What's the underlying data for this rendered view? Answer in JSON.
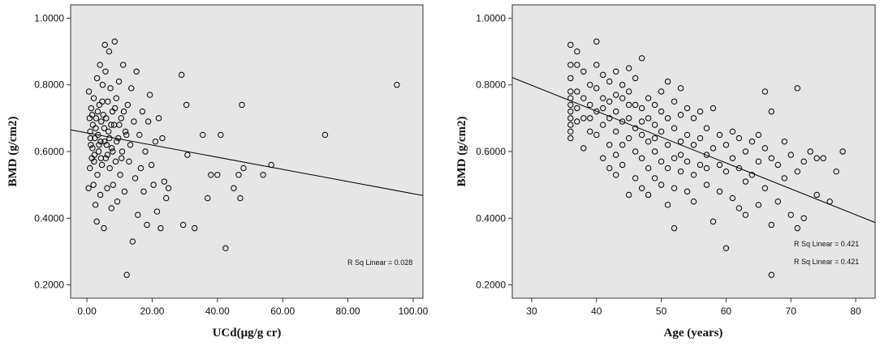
{
  "chart_data": [
    {
      "type": "scatter",
      "xlabel": "UCd(μg/g cr)",
      "ylabel": "BMD (g/cm2)",
      "xlim": [
        -5,
        103
      ],
      "ylim": [
        0.16,
        1.04
      ],
      "xticks": [
        0,
        20,
        40,
        60,
        80,
        100
      ],
      "xtick_labels": [
        "0.00",
        "20.00",
        "40.00",
        "60.00",
        "80.00",
        "100.00"
      ],
      "yticks": [
        0.2,
        0.4,
        0.6,
        0.8,
        1.0
      ],
      "ytick_labels": [
        "0.2000",
        "0.4000",
        "0.6000",
        "0.8000",
        "1.0000"
      ],
      "background": "#e6e6e6",
      "fit_line": {
        "x": [
          -5,
          103
        ],
        "y": [
          0.665,
          0.468
        ]
      },
      "annotations": [
        "R Sq Linear = 0.028"
      ],
      "points": [
        [
          0.5,
          0.49
        ],
        [
          0.8,
          0.7
        ],
        [
          0.6,
          0.78
        ],
        [
          0.9,
          0.55
        ],
        [
          1.2,
          0.62
        ],
        [
          1.0,
          0.66
        ],
        [
          1.5,
          0.58
        ],
        [
          1.3,
          0.73
        ],
        [
          1.8,
          0.68
        ],
        [
          1.7,
          0.61
        ],
        [
          2.0,
          0.5
        ],
        [
          2.1,
          0.76
        ],
        [
          2.4,
          0.64
        ],
        [
          2.2,
          0.57
        ],
        [
          2.8,
          0.7
        ],
        [
          2.6,
          0.44
        ],
        [
          3.0,
          0.39
        ],
        [
          3.1,
          0.82
        ],
        [
          3.4,
          0.65
        ],
        [
          3.2,
          0.53
        ],
        [
          3.8,
          0.74
        ],
        [
          3.6,
          0.6
        ],
        [
          4.0,
          0.86
        ],
        [
          4.1,
          0.47
        ],
        [
          4.4,
          0.69
        ],
        [
          4.2,
          0.63
        ],
        [
          4.8,
          0.8
        ],
        [
          4.6,
          0.56
        ],
        [
          5.0,
          0.71
        ],
        [
          5.2,
          0.37
        ],
        [
          5.5,
          0.92
        ],
        [
          5.3,
          0.67
        ],
        [
          5.8,
          0.58
        ],
        [
          5.7,
          0.84
        ],
        [
          6.0,
          0.62
        ],
        [
          6.2,
          0.49
        ],
        [
          6.4,
          0.75
        ],
        [
          6.6,
          0.66
        ],
        [
          6.8,
          0.9
        ],
        [
          7.0,
          0.55
        ],
        [
          7.2,
          0.79
        ],
        [
          7.5,
          0.43
        ],
        [
          7.6,
          0.61
        ],
        [
          7.8,
          0.72
        ],
        [
          8.0,
          0.5
        ],
        [
          8.3,
          0.68
        ],
        [
          8.5,
          0.93
        ],
        [
          8.8,
          0.57
        ],
        [
          9.0,
          0.76
        ],
        [
          9.3,
          0.45
        ],
        [
          9.6,
          0.64
        ],
        [
          9.8,
          0.81
        ],
        [
          10.2,
          0.53
        ],
        [
          10.5,
          0.7
        ],
        [
          10.8,
          0.6
        ],
        [
          11.1,
          0.86
        ],
        [
          11.5,
          0.48
        ],
        [
          11.8,
          0.66
        ],
        [
          12.2,
          0.23
        ],
        [
          12.5,
          0.74
        ],
        [
          12.9,
          0.57
        ],
        [
          13.3,
          0.62
        ],
        [
          13.6,
          0.79
        ],
        [
          14.0,
          0.33
        ],
        [
          14.4,
          0.69
        ],
        [
          14.8,
          0.52
        ],
        [
          15.2,
          0.84
        ],
        [
          15.6,
          0.41
        ],
        [
          16.1,
          0.65
        ],
        [
          16.5,
          0.55
        ],
        [
          17.0,
          0.72
        ],
        [
          17.4,
          0.48
        ],
        [
          17.9,
          0.6
        ],
        [
          18.4,
          0.38
        ],
        [
          18.8,
          0.69
        ],
        [
          19.3,
          0.77
        ],
        [
          19.8,
          0.56
        ],
        [
          20.4,
          0.5
        ],
        [
          21.0,
          0.63
        ],
        [
          21.5,
          0.42
        ],
        [
          22.0,
          0.7
        ],
        [
          22.6,
          0.37
        ],
        [
          23.1,
          0.64
        ],
        [
          23.7,
          0.51
        ],
        [
          24.3,
          0.46
        ],
        [
          25.0,
          0.49
        ],
        [
          29.0,
          0.83
        ],
        [
          29.5,
          0.38
        ],
        [
          30.5,
          0.74
        ],
        [
          30.8,
          0.59
        ],
        [
          33.0,
          0.37
        ],
        [
          35.5,
          0.65
        ],
        [
          37.0,
          0.46
        ],
        [
          38.0,
          0.53
        ],
        [
          40.0,
          0.53
        ],
        [
          41.0,
          0.65
        ],
        [
          42.5,
          0.31
        ],
        [
          45.0,
          0.49
        ],
        [
          46.5,
          0.53
        ],
        [
          47.0,
          0.46
        ],
        [
          47.5,
          0.74
        ],
        [
          48.0,
          0.55
        ],
        [
          54.0,
          0.53
        ],
        [
          56.5,
          0.56
        ],
        [
          73.0,
          0.65
        ],
        [
          95.0,
          0.8
        ],
        [
          1.1,
          0.64
        ],
        [
          1.6,
          0.71
        ],
        [
          2.3,
          0.59
        ],
        [
          2.7,
          0.67
        ],
        [
          3.3,
          0.72
        ],
        [
          3.7,
          0.62
        ],
        [
          4.3,
          0.58
        ],
        [
          4.7,
          0.75
        ],
        [
          5.4,
          0.63
        ],
        [
          5.9,
          0.7
        ],
        [
          6.3,
          0.59
        ],
        [
          6.9,
          0.64
        ],
        [
          7.4,
          0.68
        ],
        [
          7.9,
          0.6
        ],
        [
          8.6,
          0.73
        ],
        [
          9.1,
          0.63
        ],
        [
          9.9,
          0.68
        ],
        [
          10.6,
          0.58
        ],
        [
          11.3,
          0.72
        ],
        [
          12.1,
          0.65
        ]
      ]
    },
    {
      "type": "scatter",
      "xlabel": "Age (years)",
      "ylabel": "BMD (g/cm2)",
      "xlim": [
        27,
        83
      ],
      "ylim": [
        0.16,
        1.04
      ],
      "xticks": [
        30,
        40,
        50,
        60,
        70,
        80
      ],
      "xtick_labels": [
        "30",
        "40",
        "50",
        "60",
        "70",
        "80"
      ],
      "yticks": [
        0.2,
        0.4,
        0.6,
        0.8,
        1.0
      ],
      "ytick_labels": [
        "0.2000",
        "0.4000",
        "0.6000",
        "0.8000",
        "1.0000"
      ],
      "background": "#e6e6e6",
      "fit_line": {
        "x": [
          27,
          83
        ],
        "y": [
          0.822,
          0.387
        ]
      },
      "annotations": [
        "R Sq Linear = 0.421",
        "R Sq Linear = 0.421"
      ],
      "points": [
        [
          36,
          0.92
        ],
        [
          36,
          0.86
        ],
        [
          36,
          0.82
        ],
        [
          36,
          0.78
        ],
        [
          36,
          0.76
        ],
        [
          36,
          0.74
        ],
        [
          36,
          0.72
        ],
        [
          36,
          0.7
        ],
        [
          36,
          0.68
        ],
        [
          36,
          0.66
        ],
        [
          36,
          0.64
        ],
        [
          37,
          0.9
        ],
        [
          37,
          0.86
        ],
        [
          37,
          0.78
        ],
        [
          37,
          0.73
        ],
        [
          37,
          0.69
        ],
        [
          38,
          0.84
        ],
        [
          38,
          0.76
        ],
        [
          38,
          0.7
        ],
        [
          38,
          0.61
        ],
        [
          39,
          0.8
        ],
        [
          39,
          0.74
        ],
        [
          39,
          0.66
        ],
        [
          40,
          0.93
        ],
        [
          40,
          0.86
        ],
        [
          40,
          0.79
        ],
        [
          40,
          0.72
        ],
        [
          40,
          0.65
        ],
        [
          41,
          0.83
        ],
        [
          41,
          0.76
        ],
        [
          41,
          0.68
        ],
        [
          41,
          0.58
        ],
        [
          42,
          0.81
        ],
        [
          42,
          0.75
        ],
        [
          42,
          0.7
        ],
        [
          42,
          0.62
        ],
        [
          42,
          0.55
        ],
        [
          43,
          0.84
        ],
        [
          43,
          0.77
        ],
        [
          43,
          0.72
        ],
        [
          43,
          0.66
        ],
        [
          43,
          0.53
        ],
        [
          44,
          0.8
        ],
        [
          44,
          0.76
        ],
        [
          44,
          0.69
        ],
        [
          44,
          0.62
        ],
        [
          44,
          0.56
        ],
        [
          45,
          0.85
        ],
        [
          45,
          0.78
        ],
        [
          45,
          0.7
        ],
        [
          45,
          0.64
        ],
        [
          45,
          0.47
        ],
        [
          46,
          0.82
        ],
        [
          46,
          0.74
        ],
        [
          46,
          0.67
        ],
        [
          46,
          0.6
        ],
        [
          46,
          0.52
        ],
        [
          47,
          0.88
        ],
        [
          47,
          0.73
        ],
        [
          47,
          0.65
        ],
        [
          47,
          0.58
        ],
        [
          47,
          0.49
        ],
        [
          48,
          0.76
        ],
        [
          48,
          0.7
        ],
        [
          48,
          0.63
        ],
        [
          48,
          0.55
        ],
        [
          48,
          0.47
        ],
        [
          49,
          0.74
        ],
        [
          49,
          0.68
        ],
        [
          49,
          0.6
        ],
        [
          49,
          0.52
        ],
        [
          50,
          0.78
        ],
        [
          50,
          0.72
        ],
        [
          50,
          0.66
        ],
        [
          50,
          0.57
        ],
        [
          50,
          0.5
        ],
        [
          51,
          0.81
        ],
        [
          51,
          0.7
        ],
        [
          51,
          0.62
        ],
        [
          51,
          0.55
        ],
        [
          51,
          0.44
        ],
        [
          52,
          0.75
        ],
        [
          52,
          0.67
        ],
        [
          52,
          0.58
        ],
        [
          52,
          0.49
        ],
        [
          52,
          0.37
        ],
        [
          53,
          0.79
        ],
        [
          53,
          0.71
        ],
        [
          53,
          0.63
        ],
        [
          53,
          0.54
        ],
        [
          54,
          0.73
        ],
        [
          54,
          0.65
        ],
        [
          54,
          0.57
        ],
        [
          54,
          0.48
        ],
        [
          55,
          0.7
        ],
        [
          55,
          0.62
        ],
        [
          55,
          0.53
        ],
        [
          55,
          0.45
        ],
        [
          56,
          0.72
        ],
        [
          56,
          0.64
        ],
        [
          56,
          0.56
        ],
        [
          57,
          0.67
        ],
        [
          57,
          0.59
        ],
        [
          57,
          0.5
        ],
        [
          58,
          0.73
        ],
        [
          58,
          0.61
        ],
        [
          58,
          0.39
        ],
        [
          59,
          0.65
        ],
        [
          59,
          0.56
        ],
        [
          59,
          0.48
        ],
        [
          60,
          0.62
        ],
        [
          60,
          0.54
        ],
        [
          60,
          0.31
        ],
        [
          61,
          0.66
        ],
        [
          61,
          0.58
        ],
        [
          61,
          0.46
        ],
        [
          62,
          0.64
        ],
        [
          62,
          0.55
        ],
        [
          62,
          0.43
        ],
        [
          63,
          0.6
        ],
        [
          63,
          0.51
        ],
        [
          63,
          0.41
        ],
        [
          64,
          0.63
        ],
        [
          64,
          0.53
        ],
        [
          65,
          0.65
        ],
        [
          65,
          0.57
        ],
        [
          65,
          0.44
        ],
        [
          66,
          0.78
        ],
        [
          66,
          0.61
        ],
        [
          66,
          0.49
        ],
        [
          67,
          0.72
        ],
        [
          67,
          0.58
        ],
        [
          67,
          0.38
        ],
        [
          67,
          0.23
        ],
        [
          68,
          0.56
        ],
        [
          68,
          0.45
        ],
        [
          69,
          0.63
        ],
        [
          69,
          0.52
        ],
        [
          70,
          0.59
        ],
        [
          70,
          0.41
        ],
        [
          71,
          0.79
        ],
        [
          71,
          0.54
        ],
        [
          71,
          0.37
        ],
        [
          72,
          0.57
        ],
        [
          72,
          0.4
        ],
        [
          73,
          0.6
        ],
        [
          74,
          0.58
        ],
        [
          74,
          0.47
        ],
        [
          75,
          0.58
        ],
        [
          76,
          0.45
        ],
        [
          77,
          0.54
        ],
        [
          78,
          0.6
        ],
        [
          39,
          0.7
        ],
        [
          41,
          0.73
        ],
        [
          43,
          0.59
        ],
        [
          45,
          0.74
        ],
        [
          47,
          0.69
        ],
        [
          49,
          0.64
        ],
        [
          53,
          0.59
        ],
        [
          57,
          0.55
        ]
      ]
    }
  ]
}
